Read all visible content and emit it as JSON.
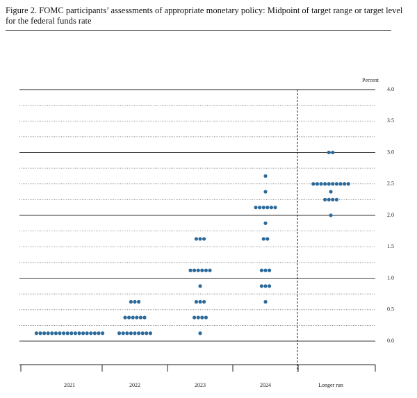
{
  "chart_data": {
    "type": "dotplot",
    "title": "Figure 2.  FOMC participants’ assessments of appropriate monetary policy:  Midpoint of target range or target level for the federal funds rate",
    "y_label": "Percent",
    "categories": [
      "2021",
      "2022",
      "2023",
      "2024",
      "Longer run"
    ],
    "values": [
      [
        0.125,
        0.125,
        0.125,
        0.125,
        0.125,
        0.125,
        0.125,
        0.125,
        0.125,
        0.125,
        0.125,
        0.125,
        0.125,
        0.125,
        0.125,
        0.125,
        0.125,
        0.125
      ],
      [
        0.125,
        0.125,
        0.125,
        0.125,
        0.125,
        0.125,
        0.125,
        0.125,
        0.125,
        0.375,
        0.375,
        0.375,
        0.375,
        0.375,
        0.375,
        0.625,
        0.625,
        0.625
      ],
      [
        0.125,
        0.375,
        0.375,
        0.375,
        0.375,
        0.625,
        0.625,
        0.625,
        0.875,
        1.125,
        1.125,
        1.125,
        1.125,
        1.125,
        1.125,
        1.625,
        1.625,
        1.625
      ],
      [
        0.625,
        0.875,
        0.875,
        0.875,
        1.125,
        1.125,
        1.125,
        1.625,
        1.625,
        1.875,
        2.125,
        2.125,
        2.125,
        2.125,
        2.125,
        2.125,
        2.375,
        2.625
      ],
      [
        2,
        2.25,
        2.25,
        2.25,
        2.25,
        2.375,
        2.5,
        2.5,
        2.5,
        2.5,
        2.5,
        2.5,
        2.5,
        2.5,
        2.5,
        2.5,
        3,
        3
      ]
    ],
    "color": "#2b6a9b",
    "ylim": [
      -0.375,
      4
    ],
    "yticks": [
      {
        "value": 0,
        "label": "0.0"
      },
      0.5,
      {
        "value": 1,
        "label": "1.0"
      },
      1.5,
      {
        "value": 2,
        "label": "2.0"
      },
      2.5,
      {
        "value": 3,
        "label": "3.0"
      },
      3.5,
      {
        "value": 4,
        "label": "4.0"
      }
    ],
    "minor_grid": [
      0.25,
      0.75,
      1.25,
      1.75,
      2.25,
      2.75,
      3.25,
      3.75
    ]
  }
}
